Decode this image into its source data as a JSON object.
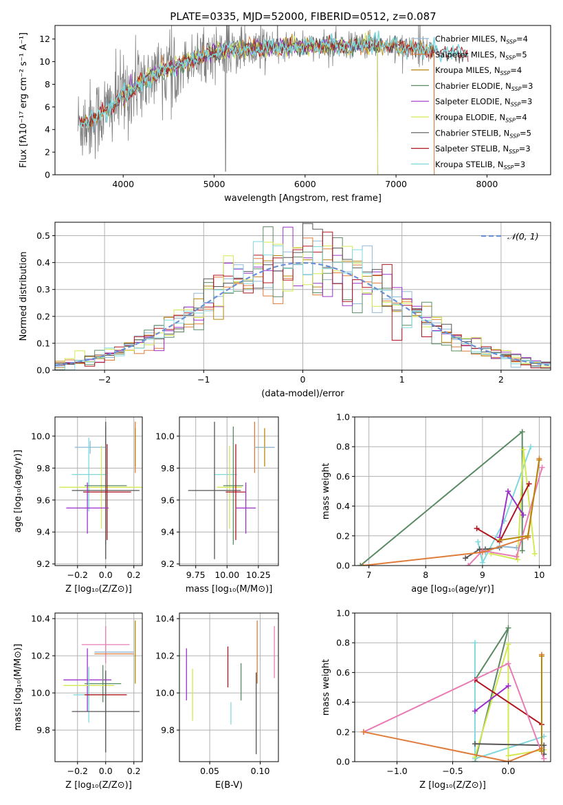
{
  "figure": {
    "title": "PLATE=0335, MJD=52000, FIBERID=0512, z=0.087"
  },
  "colors": {
    "Chabrier MILES": "#8fb8d6",
    "Salpeter MILES": "#e07b39",
    "Kroupa MILES": "#b8860b",
    "Chabrier ELODIE": "#5a8a63",
    "Salpeter ELODIE": "#9b30c8",
    "Kroupa ELODIE": "#d4e84f",
    "Chabrier STELIB": "#555555",
    "Salpeter STELIB": "#b0141e",
    "Kroupa STELIB": "#7fd8dd",
    "pink": "#e87bb4",
    "data_gray": "#7f7f7f",
    "normal_curve": "#6a8fd6"
  },
  "chart_data": [
    {
      "id": "spectrum",
      "type": "line",
      "title": "PLATE=0335, MJD=52000, FIBERID=0512, z=0.087",
      "xlabel": "wavelength [Angstrom, rest frame]",
      "ylabel": "Flux [fλ10⁻¹⁷ erg cm⁻² s⁻¹ A⁻¹]",
      "xlim": [
        3250,
        8700
      ],
      "ylim": [
        0,
        13.2
      ],
      "xticks": [
        4000,
        5000,
        6000,
        7000,
        8000
      ],
      "yticks": [
        0,
        2,
        4,
        6,
        8,
        10,
        12
      ],
      "grid": false,
      "legend_position": "right",
      "legend": [
        "Chabrier MILES, N_SSP=4",
        "Salpeter MILES, N_SSP=5",
        "Kroupa MILES, N_SSP=4",
        "Chabrier ELODIE, N_SSP=3",
        "Salpeter ELODIE, N_SSP=3",
        "Kroupa ELODIE, N_SSP=4",
        "Chabrier STELIB, N_SSP=5",
        "Salpeter STELIB, N_SSP=3",
        "Kroupa STELIB, N_SSP=3"
      ],
      "continuum": {
        "x": [
          3500,
          3700,
          3900,
          4000,
          4200,
          4400,
          4600,
          4800,
          5000,
          5200,
          5500,
          5800,
          6000,
          6300,
          6600,
          6900,
          7100,
          7300,
          7500,
          7700,
          7900,
          8200
        ],
        "y": [
          4.4,
          5.0,
          6.2,
          7.1,
          8.1,
          9.1,
          9.7,
          10.3,
          10.8,
          11.1,
          11.2,
          11.3,
          11.4,
          11.4,
          11.4,
          11.5,
          11.3,
          11.1,
          10.9,
          10.7,
          10.5,
          10.3
        ]
      },
      "data_range": [
        3500,
        7420
      ],
      "model_ranges": {
        "MILES": [
          3540,
          7420
        ],
        "ELODIE": [
          4000,
          6800
        ],
        "STELIB": [
          3520,
          7800
        ]
      }
    },
    {
      "id": "residuals",
      "type": "histogram",
      "xlabel": "(data-model)/error",
      "ylabel": "Normed distribution",
      "xlim": [
        -2.5,
        2.5
      ],
      "ylim": [
        0,
        0.55
      ],
      "xticks": [
        -2,
        -1,
        0,
        1,
        2
      ],
      "yticks": [
        0.0,
        0.1,
        0.2,
        0.3,
        0.4,
        0.5
      ],
      "grid": true,
      "legend": [
        "𝒩(0, 1)"
      ],
      "legend_position": "top-right",
      "bin_width": 0.1,
      "reference_curve": {
        "type": "normal",
        "mean": 0,
        "sigma": 1
      }
    },
    {
      "id": "age_vs_Z",
      "type": "errorbar",
      "xlabel": "Z [log₁₀(Z/Z⊙)]",
      "ylabel": "age  [log₁₀(age/yr)]",
      "xlim": [
        -0.36,
        0.26
      ],
      "ylim": [
        9.19,
        10.12
      ],
      "xticks": [
        -0.2,
        0.0,
        0.2
      ],
      "yticks": [
        9.2,
        9.4,
        9.6,
        9.8,
        10.0
      ],
      "grid": true,
      "points": [
        {
          "name": "Salpeter MILES",
          "x": 0.21,
          "y": 9.93,
          "xerr": 0.0,
          "yerr": 0.16
        },
        {
          "name": "Chabrier MILES",
          "x": -0.11,
          "y": 9.93,
          "xerr": 0.11,
          "yerr": 0.04
        },
        {
          "name": "Kroupa MILES",
          "x": 0.21,
          "y": 9.93,
          "xerr": 0.0,
          "yerr": 0.12
        },
        {
          "name": "Kroupa STELIB",
          "x": -0.12,
          "y": 9.76,
          "xerr": 0.12,
          "yerr": 0.23
        },
        {
          "name": "Kroupa ELODIE",
          "x": -0.03,
          "y": 9.68,
          "xerr": 0.3,
          "yerr": 0.26
        },
        {
          "name": "Chabrier ELODIE",
          "x": 0.0,
          "y": 9.69,
          "xerr": 0.15,
          "yerr": 0.37
        },
        {
          "name": "Chabrier STELIB",
          "x": 0.0,
          "y": 9.66,
          "xerr": 0.24,
          "yerr": 0.43
        },
        {
          "name": "Salpeter STELIB",
          "x": 0.01,
          "y": 9.65,
          "xerr": 0.17,
          "yerr": 0.3
        },
        {
          "name": "Salpeter ELODIE",
          "x": -0.13,
          "y": 9.55,
          "xerr": 0.15,
          "yerr": 0.16
        }
      ]
    },
    {
      "id": "age_vs_mass",
      "type": "errorbar",
      "xlabel": "mass [log₁₀(M/M⊙)]",
      "ylabel": "",
      "xlim": [
        9.62,
        10.41
      ],
      "ylim": [
        9.19,
        10.12
      ],
      "xticks": [
        9.75,
        10.0,
        10.25
      ],
      "tick_labels": [
        "9.75",
        "10.00",
        "10.25"
      ],
      "yticks": [
        9.2,
        9.4,
        9.6,
        9.8,
        10.0
      ],
      "grid": true,
      "points": [
        {
          "name": "Salpeter MILES",
          "x": 10.22,
          "y": 9.93,
          "xerr": 0.0,
          "yerr": 0.16
        },
        {
          "name": "Kroupa MILES",
          "x": 10.3,
          "y": 9.93,
          "xerr": 0.08,
          "yerr": 0.12
        },
        {
          "name": "Chabrier MILES",
          "x": 10.3,
          "y": 9.93,
          "xerr": 0.08,
          "yerr": 0.0
        },
        {
          "name": "Kroupa STELIB",
          "x": 9.99,
          "y": 9.76,
          "xerr": 0.09,
          "yerr": 0.0
        },
        {
          "name": "Kroupa ELODIE",
          "x": 10.02,
          "y": 9.68,
          "xerr": 0.1,
          "yerr": 0.26
        },
        {
          "name": "Chabrier ELODIE",
          "x": 10.05,
          "y": 9.69,
          "xerr": 0.08,
          "yerr": 0.37
        },
        {
          "name": "Chabrier STELIB",
          "x": 9.9,
          "y": 9.66,
          "xerr": 0.21,
          "yerr": 0.43
        },
        {
          "name": "Salpeter STELIB",
          "x": 10.07,
          "y": 9.65,
          "xerr": 0.08,
          "yerr": 0.3
        },
        {
          "name": "Salpeter ELODIE",
          "x": 10.15,
          "y": 9.55,
          "xerr": 0.08,
          "yerr": 0.16
        }
      ]
    },
    {
      "id": "mass_weight_vs_age",
      "type": "line",
      "xlabel": "age  [log₁₀(age/yr)]",
      "ylabel": "mass weight",
      "xlim": [
        6.75,
        10.2
      ],
      "ylim": [
        0,
        1.0
      ],
      "xticks": [
        7,
        8,
        9,
        10
      ],
      "yticks": [
        0.0,
        0.2,
        0.4,
        0.6,
        0.8,
        1.0
      ],
      "grid": true,
      "series": [
        {
          "name": "Chabrier ELODIE",
          "x": [
            6.85,
            9.7,
            9.7
          ],
          "y": [
            0.0,
            0.9,
            0.1
          ]
        },
        {
          "name": "Kroupa STELIB",
          "x": [
            8.92,
            9.0,
            9.38,
            9.85
          ],
          "y": [
            0.16,
            0.02,
            0.3,
            0.8
          ]
        },
        {
          "name": "Kroupa ELODIE",
          "x": [
            9.15,
            9.62,
            9.72,
            9.92
          ],
          "y": [
            0.08,
            0.04,
            0.78,
            0.08
          ]
        },
        {
          "name": "Salpeter ELODIE",
          "x": [
            9.3,
            9.45,
            9.72
          ],
          "y": [
            0.19,
            0.5,
            0.34
          ]
        },
        {
          "name": "Salpeter STELIB",
          "x": [
            8.9,
            9.3,
            9.82
          ],
          "y": [
            0.25,
            0.16,
            0.55
          ]
        },
        {
          "name": "Chabrier STELIB",
          "x": [
            8.7,
            8.95,
            9.05,
            9.3
          ],
          "y": [
            0.05,
            0.11,
            0.11,
            0.12
          ]
        },
        {
          "name": "Chabrier MILES",
          "x": [
            9.05,
            9.3,
            9.6
          ],
          "y": [
            0.09,
            0.13,
            0.12
          ]
        },
        {
          "name": "pink",
          "x": [
            8.75,
            9.0,
            9.6,
            10.05
          ],
          "y": [
            0.0,
            0.1,
            0.06,
            0.66
          ]
        },
        {
          "name": "Salpeter MILES",
          "x": [
            6.9,
            9.0,
            9.8,
            10.0
          ],
          "y": [
            0.0,
            0.09,
            0.19,
            0.72
          ]
        },
        {
          "name": "Kroupa MILES",
          "x": [
            9.3,
            9.8,
            10.0
          ],
          "y": [
            0.17,
            0.2,
            0.71
          ]
        }
      ]
    },
    {
      "id": "mass_vs_Z",
      "type": "errorbar",
      "xlabel": "Z [log₁₀(Z/Z⊙)]",
      "ylabel": "mass [log₁₀(M/M⊙)]",
      "xlim": [
        -0.36,
        0.26
      ],
      "ylim": [
        9.63,
        10.43
      ],
      "xticks": [
        -0.2,
        0.0,
        0.2
      ],
      "yticks": [
        9.8,
        10.0,
        10.2,
        10.4
      ],
      "grid": true,
      "points": [
        {
          "name": "pink",
          "x": 0.0,
          "y": 10.26,
          "xerr": 0.17,
          "yerr": 0.1
        },
        {
          "name": "Chabrier MILES",
          "x": 0.06,
          "y": 10.22,
          "xerr": 0.14,
          "yerr": 0.0
        },
        {
          "name": "Salpeter MILES",
          "x": 0.06,
          "y": 10.21,
          "xerr": 0.14,
          "yerr": 0.0
        },
        {
          "name": "Kroupa MILES",
          "x": 0.21,
          "y": 10.22,
          "xerr": 0.0,
          "yerr": 0.17
        },
        {
          "name": "Salpeter ELODIE",
          "x": -0.13,
          "y": 10.07,
          "xerr": 0.17,
          "yerr": 0.17
        },
        {
          "name": "Chabrier ELODIE",
          "x": -0.02,
          "y": 10.05,
          "xerr": 0.13,
          "yerr": 0.1
        },
        {
          "name": "Kroupa ELODIE",
          "x": -0.12,
          "y": 10.04,
          "xerr": 0.18,
          "yerr": 0.1
        },
        {
          "name": "Kroupa STELIB",
          "x": -0.12,
          "y": 9.99,
          "xerr": 0.11,
          "yerr": 0.15
        },
        {
          "name": "Salpeter STELIB",
          "x": 0.0,
          "y": 9.99,
          "xerr": 0.15,
          "yerr": 0.0
        },
        {
          "name": "Chabrier STELIB",
          "x": 0.0,
          "y": 9.9,
          "xerr": 0.24,
          "yerr": 0.22
        }
      ]
    },
    {
      "id": "mass_vs_ebv",
      "type": "errorbar",
      "xlabel": "E(B-V)",
      "ylabel": "",
      "xlim": [
        0.02,
        0.118
      ],
      "ylim": [
        9.63,
        10.43
      ],
      "xticks": [
        0.05,
        0.1
      ],
      "tick_labels": [
        "0.05",
        "0.10"
      ],
      "yticks": [
        9.8,
        10.0,
        10.2,
        10.4
      ],
      "grid": true,
      "points": [
        {
          "name": "Salpeter ELODIE",
          "x": 0.027,
          "y": 10.1,
          "yerr": 0.14
        },
        {
          "name": "Kroupa ELODIE",
          "x": 0.033,
          "y": 9.99,
          "yerr": 0.14
        },
        {
          "name": "Salpeter STELIB",
          "x": 0.068,
          "y": 10.14,
          "yerr": 0.11
        },
        {
          "name": "Kroupa STELIB",
          "x": 0.071,
          "y": 9.89,
          "yerr": 0.06
        },
        {
          "name": "Chabrier ELODIE",
          "x": 0.081,
          "y": 10.06,
          "yerr": 0.1
        },
        {
          "name": "Chabrier STELIB",
          "x": 0.096,
          "y": 9.89,
          "yerr": 0.22
        },
        {
          "name": "Salpeter MILES",
          "x": 0.097,
          "y": 10.22,
          "yerr": 0.17
        },
        {
          "name": "pink",
          "x": 0.114,
          "y": 10.22,
          "yerr": 0.14
        }
      ]
    },
    {
      "id": "mass_weight_vs_Z",
      "type": "line",
      "xlabel": "Z [log₁₀(Z/Z⊙)]",
      "ylabel": "mass weight",
      "xlim": [
        -1.38,
        0.38
      ],
      "ylim": [
        0,
        1.0
      ],
      "xticks": [
        -1.0,
        -0.5,
        0.0
      ],
      "yticks": [
        0.0,
        0.2,
        0.4,
        0.6,
        0.8,
        1.0
      ],
      "grid": true,
      "series": [
        {
          "name": "Chabrier ELODIE",
          "x": [
            -0.3,
            0.0,
            -0.3
          ],
          "y": [
            0.0,
            0.9,
            0.55
          ]
        },
        {
          "name": "Kroupa STELIB",
          "x": [
            -0.3,
            -0.3,
            0.32
          ],
          "y": [
            0.8,
            0.02,
            0.17
          ]
        },
        {
          "name": "Kroupa ELODIE",
          "x": [
            -0.3,
            0.0,
            0.0,
            0.32
          ],
          "y": [
            0.03,
            0.79,
            0.04,
            0.08
          ]
        },
        {
          "name": "Salpeter ELODIE",
          "x": [
            -0.3,
            0.0
          ],
          "y": [
            0.34,
            0.51
          ]
        },
        {
          "name": "Salpeter STELIB",
          "x": [
            -0.3,
            0.3
          ],
          "y": [
            0.55,
            0.25
          ]
        },
        {
          "name": "Chabrier STELIB",
          "x": [
            -0.3,
            0.32,
            0.32
          ],
          "y": [
            0.12,
            0.11,
            0.05
          ]
        },
        {
          "name": "pink",
          "x": [
            -1.3,
            0.0,
            0.32
          ],
          "y": [
            0.2,
            0.66,
            0.02
          ]
        },
        {
          "name": "Salpeter MILES",
          "x": [
            -1.3,
            0.0,
            0.3,
            0.3
          ],
          "y": [
            0.2,
            0.0,
            0.09,
            0.72
          ]
        },
        {
          "name": "Kroupa MILES",
          "x": [
            0.3,
            0.3
          ],
          "y": [
            0.07,
            0.71
          ]
        }
      ]
    }
  ]
}
